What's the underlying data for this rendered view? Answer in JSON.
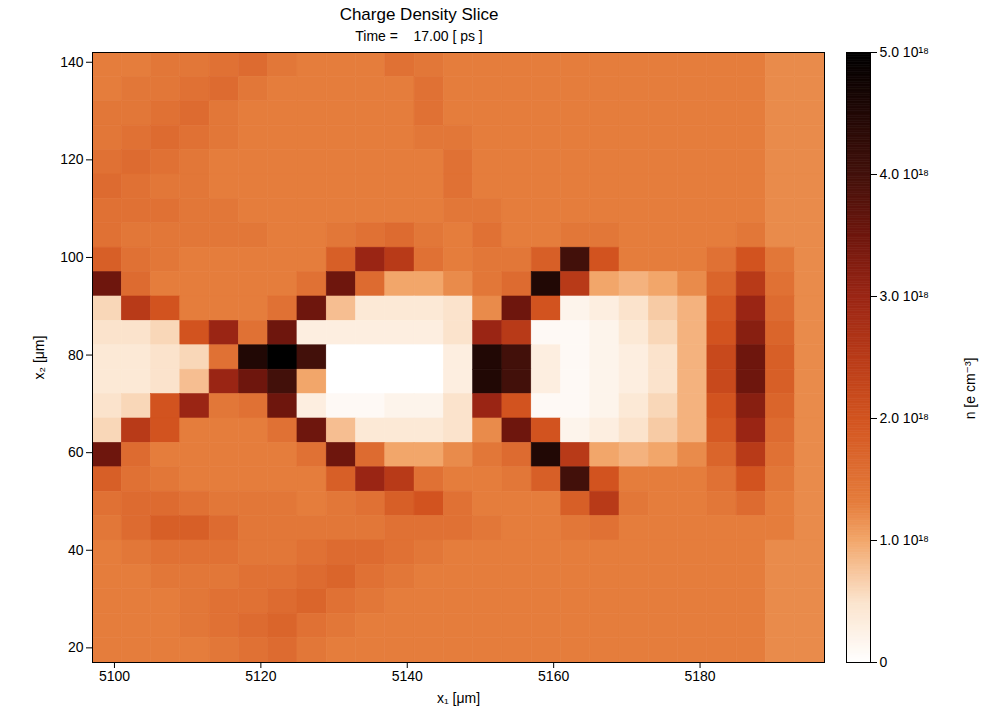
{
  "chart_data": {
    "type": "heatmap",
    "title": "Charge Density Slice",
    "subtitle": "Time =    17.00 [ ps ]",
    "x_label": "x₁ [μm]",
    "y_label": "x₂ [μm]",
    "xlim": [
      5097,
      5197
    ],
    "ylim": [
      17,
      142
    ],
    "xticks": [
      5100,
      5120,
      5140,
      5160,
      5180
    ],
    "yticks": [
      20,
      40,
      60,
      80,
      100,
      120,
      140
    ],
    "x_edges": [
      5097,
      5101,
      5105,
      5109,
      5113,
      5117,
      5121,
      5125,
      5129,
      5133,
      5137,
      5141,
      5145,
      5149,
      5153,
      5157,
      5161,
      5165,
      5169,
      5173,
      5177,
      5181,
      5185,
      5189,
      5193,
      5197
    ],
    "y_edges": [
      142,
      137,
      132,
      127,
      122,
      117,
      112,
      107,
      102,
      97,
      92,
      87,
      82,
      77,
      72,
      67,
      62,
      57,
      52,
      47,
      42,
      37,
      32,
      27,
      22,
      17
    ],
    "values": [
      [
        1.3e+18,
        1.3e+18,
        1.4e+18,
        1.4e+18,
        1.5e+18,
        1.6e+18,
        1.4e+18,
        1.3e+18,
        1.3e+18,
        1.3e+18,
        1.5e+18,
        1.4e+18,
        1.3e+18,
        1.3e+18,
        1.3e+18,
        1.3e+18,
        1.3e+18,
        1.3e+18,
        1.3e+18,
        1.3e+18,
        1.3e+18,
        1.3e+18,
        1.3e+18,
        1.2e+18,
        1.2e+18
      ],
      [
        1.3e+18,
        1.4e+18,
        1.4e+18,
        1.5e+18,
        1.6e+18,
        1.4e+18,
        1.3e+18,
        1.3e+18,
        1.3e+18,
        1.3e+18,
        1.3e+18,
        1.5e+18,
        1.3e+18,
        1.3e+18,
        1.3e+18,
        1.3e+18,
        1.3e+18,
        1.3e+18,
        1.3e+18,
        1.3e+18,
        1.3e+18,
        1.3e+18,
        1.3e+18,
        1.2e+18,
        1.2e+18
      ],
      [
        1.4e+18,
        1.4e+18,
        1.5e+18,
        1.6e+18,
        1.4e+18,
        1.3e+18,
        1.3e+18,
        1.3e+18,
        1.3e+18,
        1.3e+18,
        1.3e+18,
        1.5e+18,
        1.3e+18,
        1.3e+18,
        1.3e+18,
        1.3e+18,
        1.3e+18,
        1.3e+18,
        1.3e+18,
        1.3e+18,
        1.3e+18,
        1.3e+18,
        1.3e+18,
        1.2e+18,
        1.2e+18
      ],
      [
        1.4e+18,
        1.5e+18,
        1.6e+18,
        1.5e+18,
        1.4e+18,
        1.3e+18,
        1.3e+18,
        1.3e+18,
        1.3e+18,
        1.3e+18,
        1.3e+18,
        1.4e+18,
        1.4e+18,
        1.3e+18,
        1.3e+18,
        1.3e+18,
        1.3e+18,
        1.3e+18,
        1.3e+18,
        1.3e+18,
        1.3e+18,
        1.3e+18,
        1.3e+18,
        1.2e+18,
        1.2e+18
      ],
      [
        1.5e+18,
        1.6e+18,
        1.5e+18,
        1.4e+18,
        1.3e+18,
        1.3e+18,
        1.3e+18,
        1.3e+18,
        1.3e+18,
        1.3e+18,
        1.3e+18,
        1.3e+18,
        1.5e+18,
        1.3e+18,
        1.3e+18,
        1.3e+18,
        1.3e+18,
        1.3e+18,
        1.3e+18,
        1.3e+18,
        1.3e+18,
        1.3e+18,
        1.3e+18,
        1.2e+18,
        1.2e+18
      ],
      [
        1.6e+18,
        1.5e+18,
        1.4e+18,
        1.4e+18,
        1.3e+18,
        1.3e+18,
        1.3e+18,
        1.3e+18,
        1.3e+18,
        1.3e+18,
        1.3e+18,
        1.3e+18,
        1.5e+18,
        1.3e+18,
        1.3e+18,
        1.3e+18,
        1.3e+18,
        1.3e+18,
        1.3e+18,
        1.3e+18,
        1.3e+18,
        1.3e+18,
        1.3e+18,
        1.2e+18,
        1.2e+18
      ],
      [
        1.5e+18,
        1.5e+18,
        1.5e+18,
        1.4e+18,
        1.4e+18,
        1.3e+18,
        1.3e+18,
        1.3e+18,
        1.3e+18,
        1.3e+18,
        1.3e+18,
        1.3e+18,
        1.4e+18,
        1.4e+18,
        1.3e+18,
        1.3e+18,
        1.3e+18,
        1.3e+18,
        1.3e+18,
        1.3e+18,
        1.3e+18,
        1.3e+18,
        1.3e+18,
        1.2e+18,
        1.2e+18
      ],
      [
        1.5e+18,
        1.4e+18,
        1.4e+18,
        1.4e+18,
        1.4e+18,
        1.4e+18,
        1.3e+18,
        1.3e+18,
        1.4e+18,
        1.5e+18,
        1.6e+18,
        1.4e+18,
        1.3e+18,
        1.5e+18,
        1.3e+18,
        1.3e+18,
        1.4e+18,
        1.4e+18,
        1.3e+18,
        1.3e+18,
        1.3e+18,
        1.3e+18,
        1.4e+18,
        1.2e+18,
        1.2e+18
      ],
      [
        1.8e+18,
        1.5e+18,
        1.4e+18,
        1.3e+18,
        1.3e+18,
        1.3e+18,
        1.3e+18,
        1.3e+18,
        1.8e+18,
        3e+18,
        2.5e+18,
        1.5e+18,
        1.3e+18,
        1.4e+18,
        1.4e+18,
        1.8e+18,
        4e+18,
        2e+18,
        1.3e+18,
        1.3e+18,
        1.3e+18,
        1.5e+18,
        2e+18,
        1.4e+18,
        1.2e+18
      ],
      [
        3.5e+18,
        1.6e+18,
        1.3e+18,
        1.3e+18,
        1.3e+18,
        1.3e+18,
        1.3e+18,
        1.5e+18,
        3.5e+18,
        1.6e+18,
        1e+18,
        1e+18,
        1.2e+18,
        1.4e+18,
        1.6e+18,
        4.5e+18,
        2.5e+18,
        1e+18,
        9e+17,
        1e+18,
        1.2e+18,
        1.7e+18,
        2.5e+18,
        1.5e+18,
        1.2e+18
      ],
      [
        6e+17,
        2.5e+18,
        2e+18,
        1.3e+18,
        1.3e+18,
        1.3e+18,
        1.5e+18,
        3.5e+18,
        8e+17,
        4e+17,
        4e+17,
        4e+17,
        5e+17,
        1.2e+18,
        3.5e+18,
        2e+18,
        2e+17,
        3e+17,
        5e+17,
        7e+17,
        9e+17,
        1.9e+18,
        3e+18,
        1.6e+18,
        1.2e+18
      ],
      [
        5e+17,
        5e+17,
        6e+17,
        2e+18,
        3e+18,
        1.5e+18,
        3.5e+18,
        3e+17,
        3e+17,
        3e+17,
        3e+17,
        3e+17,
        5e+17,
        3e+18,
        2.5e+18,
        1e+17,
        1e+17,
        2e+17,
        4e+17,
        6e+17,
        9e+17,
        2e+18,
        3.2e+18,
        1.7e+18,
        1.2e+18
      ],
      [
        4e+17,
        4e+17,
        5e+17,
        6e+17,
        1.5e+18,
        4.5e+18,
        5e+18,
        4e+18,
        0,
        0,
        0,
        0,
        3e+17,
        4.5e+18,
        4e+18,
        3e+17,
        1e+17,
        2e+17,
        3e+17,
        5e+17,
        9e+17,
        2.2e+18,
        3.5e+18,
        1.8e+18,
        1.2e+18
      ],
      [
        4e+17,
        4e+17,
        5e+17,
        8e+17,
        3e+18,
        3.5e+18,
        4e+18,
        1e+18,
        0,
        0,
        0,
        0,
        3e+17,
        4.5e+18,
        4e+18,
        3e+17,
        1e+17,
        2e+17,
        3e+17,
        5e+17,
        9e+17,
        2.2e+18,
        3.5e+18,
        1.8e+18,
        1.2e+18
      ],
      [
        5e+17,
        6e+17,
        2e+18,
        3e+18,
        1.4e+18,
        1.5e+18,
        3.5e+18,
        3e+17,
        1e+17,
        1e+17,
        2e+17,
        2e+17,
        5e+17,
        3e+18,
        2e+18,
        1e+17,
        1e+17,
        2e+17,
        4e+17,
        6e+17,
        9e+17,
        2e+18,
        3.2e+18,
        1.7e+18,
        1.2e+18
      ],
      [
        6e+17,
        2.5e+18,
        2e+18,
        1.3e+18,
        1.3e+18,
        1.3e+18,
        1.5e+18,
        3.5e+18,
        8e+17,
        4e+17,
        4e+17,
        4e+17,
        5e+17,
        1.2e+18,
        3.5e+18,
        2e+18,
        2e+17,
        3e+17,
        5e+17,
        7e+17,
        9e+17,
        1.9e+18,
        3e+18,
        1.6e+18,
        1.2e+18
      ],
      [
        3.5e+18,
        1.6e+18,
        1.3e+18,
        1.3e+18,
        1.3e+18,
        1.3e+18,
        1.3e+18,
        1.5e+18,
        3.5e+18,
        1.6e+18,
        1e+18,
        1e+18,
        1.2e+18,
        1.4e+18,
        1.6e+18,
        4.5e+18,
        2.5e+18,
        1e+18,
        9e+17,
        1e+18,
        1.2e+18,
        1.7e+18,
        2.5e+18,
        1.5e+18,
        1.2e+18
      ],
      [
        1.8e+18,
        1.5e+18,
        1.4e+18,
        1.3e+18,
        1.3e+18,
        1.3e+18,
        1.3e+18,
        1.3e+18,
        1.8e+18,
        3e+18,
        2.5e+18,
        1.5e+18,
        1.3e+18,
        1.3e+18,
        1.4e+18,
        1.8e+18,
        4e+18,
        2e+18,
        1.3e+18,
        1.3e+18,
        1.3e+18,
        1.5e+18,
        2e+18,
        1.4e+18,
        1.2e+18
      ],
      [
        1.5e+18,
        1.6e+18,
        1.6e+18,
        1.5e+18,
        1.4e+18,
        1.4e+18,
        1.4e+18,
        1.3e+18,
        1.4e+18,
        1.5e+18,
        1.8e+18,
        2e+18,
        1.5e+18,
        1.3e+18,
        1.3e+18,
        1.3e+18,
        1.8e+18,
        2.5e+18,
        1.4e+18,
        1.3e+18,
        1.3e+18,
        1.4e+18,
        1.6e+18,
        1.3e+18,
        1.2e+18
      ],
      [
        1.4e+18,
        1.6e+18,
        1.8e+18,
        1.8e+18,
        1.6e+18,
        1.4e+18,
        1.4e+18,
        1.4e+18,
        1.4e+18,
        1.4e+18,
        1.5e+18,
        1.5e+18,
        1.5e+18,
        1.4e+18,
        1.3e+18,
        1.3e+18,
        1.4e+18,
        1.5e+18,
        1.3e+18,
        1.3e+18,
        1.3e+18,
        1.3e+18,
        1.3e+18,
        1.3e+18,
        1.2e+18
      ],
      [
        1.3e+18,
        1.4e+18,
        1.5e+18,
        1.5e+18,
        1.5e+18,
        1.4e+18,
        1.4e+18,
        1.5e+18,
        1.6e+18,
        1.6e+18,
        1.5e+18,
        1.4e+18,
        1.3e+18,
        1.3e+18,
        1.3e+18,
        1.3e+18,
        1.3e+18,
        1.3e+18,
        1.3e+18,
        1.3e+18,
        1.3e+18,
        1.3e+18,
        1.3e+18,
        1.2e+18,
        1.2e+18
      ],
      [
        1.3e+18,
        1.3e+18,
        1.4e+18,
        1.4e+18,
        1.4e+18,
        1.5e+18,
        1.5e+18,
        1.6e+18,
        1.7e+18,
        1.5e+18,
        1.4e+18,
        1.3e+18,
        1.3e+18,
        1.3e+18,
        1.3e+18,
        1.3e+18,
        1.3e+18,
        1.3e+18,
        1.3e+18,
        1.3e+18,
        1.3e+18,
        1.3e+18,
        1.3e+18,
        1.2e+18,
        1.2e+18
      ],
      [
        1.3e+18,
        1.3e+18,
        1.3e+18,
        1.4e+18,
        1.5e+18,
        1.5e+18,
        1.6e+18,
        1.7e+18,
        1.5e+18,
        1.4e+18,
        1.3e+18,
        1.3e+18,
        1.3e+18,
        1.3e+18,
        1.3e+18,
        1.3e+18,
        1.3e+18,
        1.3e+18,
        1.3e+18,
        1.3e+18,
        1.3e+18,
        1.3e+18,
        1.3e+18,
        1.2e+18,
        1.2e+18
      ],
      [
        1.3e+18,
        1.3e+18,
        1.3e+18,
        1.4e+18,
        1.5e+18,
        1.6e+18,
        1.7e+18,
        1.5e+18,
        1.4e+18,
        1.3e+18,
        1.3e+18,
        1.3e+18,
        1.3e+18,
        1.3e+18,
        1.3e+18,
        1.3e+18,
        1.3e+18,
        1.3e+18,
        1.3e+18,
        1.3e+18,
        1.3e+18,
        1.3e+18,
        1.3e+18,
        1.2e+18,
        1.2e+18
      ],
      [
        1.3e+18,
        1.3e+18,
        1.3e+18,
        1.3e+18,
        1.4e+18,
        1.5e+18,
        1.6e+18,
        1.4e+18,
        1.3e+18,
        1.3e+18,
        1.3e+18,
        1.3e+18,
        1.3e+18,
        1.3e+18,
        1.3e+18,
        1.3e+18,
        1.3e+18,
        1.3e+18,
        1.3e+18,
        1.3e+18,
        1.3e+18,
        1.3e+18,
        1.3e+18,
        1.2e+18,
        1.2e+18
      ]
    ],
    "colorbar_label": "n [e cm⁻³]",
    "colorbar_lim": [
      0,
      5e+18
    ],
    "colorbar_ticks": [
      0,
      {
        "value": 1e+18,
        "label": "1.0 10¹⁸"
      },
      {
        "value": 2e+18,
        "label": "2.0 10¹⁸"
      },
      {
        "value": 3e+18,
        "label": "3.0 10¹⁸"
      },
      {
        "value": 4e+18,
        "label": "4.0 10¹⁸"
      },
      {
        "value": 5e+18,
        "label": "5.0 10¹⁸"
      }
    ]
  }
}
